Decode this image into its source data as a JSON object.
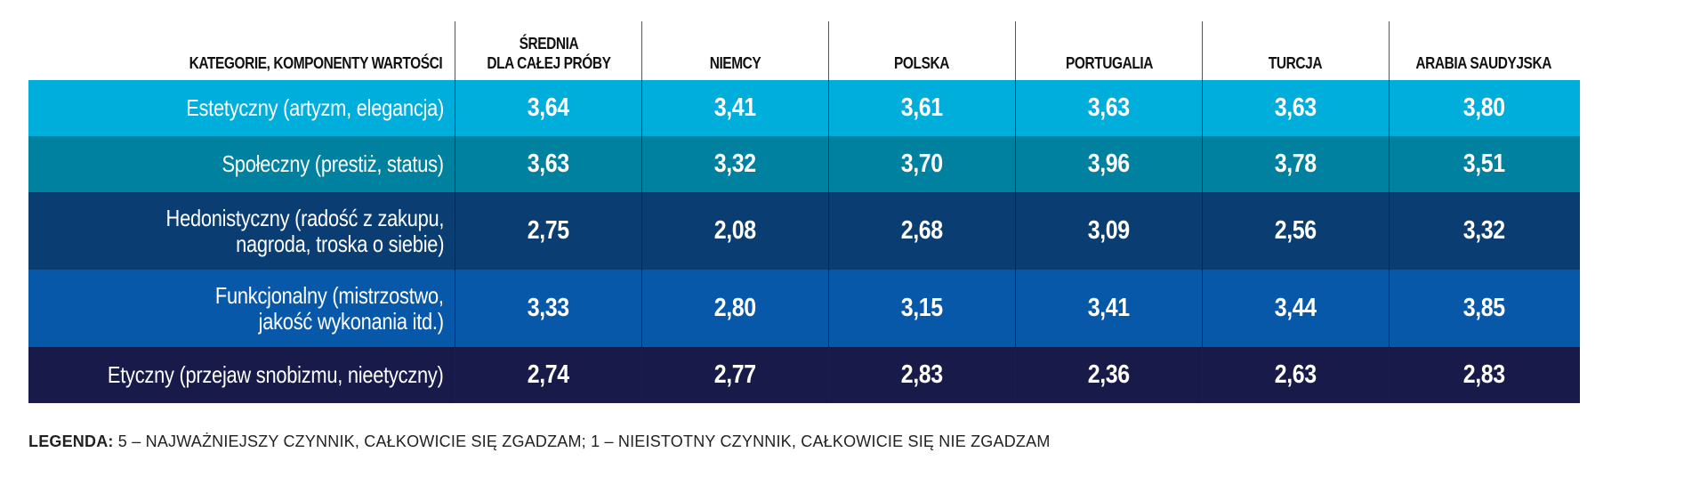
{
  "chart_data": {
    "type": "table",
    "columns": [
      "KATEGORIE, KOMPONENTY WARTOŚCI",
      "ŚREDNIA\nDLA CAŁEJ PRÓBY",
      "NIEMCY",
      "POLSKA",
      "PORTUGALIA",
      "TURCJA",
      "ARABIA SAUDYJSKA"
    ],
    "rows": [
      {
        "category": "Estetyczny (artyzm, elegancja)",
        "values": [
          "3,64",
          "3,41",
          "3,61",
          "3,63",
          "3,63",
          "3,80"
        ],
        "color": "#00aedb"
      },
      {
        "category": "Społeczny (prestiż, status)",
        "values": [
          "3,63",
          "3,32",
          "3,70",
          "3,96",
          "3,78",
          "3,51"
        ],
        "color": "#00819f"
      },
      {
        "category": "Hedonistyczny (radość z zakupu,\nnagroda, troska o siebie)",
        "values": [
          "2,75",
          "2,08",
          "2,68",
          "3,09",
          "2,56",
          "3,32"
        ],
        "color": "#0a3d71"
      },
      {
        "category": "Funkcjonalny (mistrzostwo,\njakość wykonania itd.)",
        "values": [
          "3,33",
          "2,80",
          "3,15",
          "3,41",
          "3,44",
          "3,85"
        ],
        "color": "#0758a9"
      },
      {
        "category": "Etyczny (przejaw snobizmu, nieetyczny)",
        "values": [
          "2,74",
          "2,77",
          "2,83",
          "2,36",
          "2,63",
          "2,83"
        ],
        "color": "#181a49"
      }
    ]
  },
  "legend": {
    "label": "LEGENDA:",
    "text": " 5 – NAJWAŻNIEJSZY CZYNNIK, CAŁKOWICIE SIĘ ZGADZAM; 1 – NIEISTOTNY CZYNNIK, CAŁKOWICIE SIĘ NIE ZGADZAM"
  }
}
